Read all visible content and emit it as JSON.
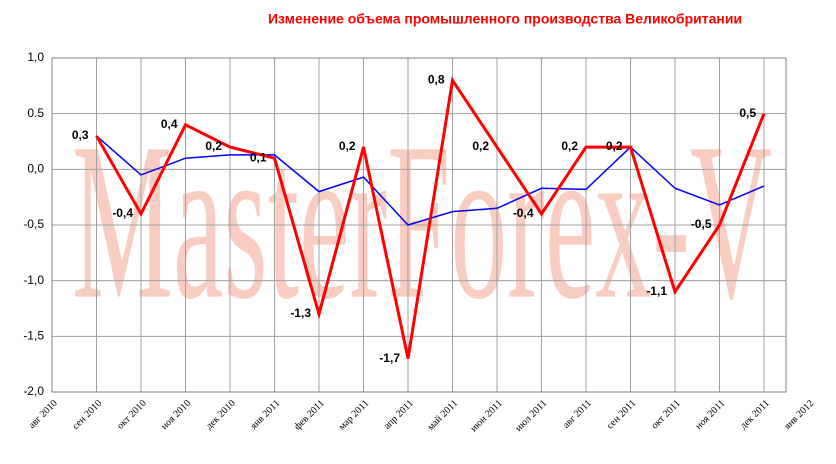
{
  "chart_data": {
    "type": "line",
    "title": "Изменение объема промышленного производства Великобритании",
    "watermark": "MasterForex-V",
    "categories": [
      "авг 2010",
      "сен 2010",
      "окт 2010",
      "ноя 2010",
      "дек 2010",
      "янв 2011",
      "фев 2011",
      "мар 2011",
      "апр 2011",
      "май 2011",
      "июн 2011",
      "июл 2011",
      "авг 2011",
      "сен 2011",
      "окт 2011",
      "ноя 2011",
      "дек 2011",
      "янв 2012"
    ],
    "series": [
      {
        "color": "#ff0000",
        "values": [
          null,
          0.3,
          -0.4,
          0.4,
          0.2,
          0.1,
          -1.3,
          0.2,
          -1.7,
          0.8,
          0.2,
          -0.4,
          0.2,
          0.2,
          -1.1,
          -0.5,
          0.5,
          null
        ],
        "value_labels": [
          null,
          "0,3",
          "-0,4",
          "0,4",
          "0,2",
          "0,1",
          "-1,3",
          "0,2",
          "-1,7",
          "0,8",
          "0,2",
          "-0,4",
          "0,2",
          "0,2",
          "-1,1",
          "-0,5",
          "0,5",
          null
        ]
      },
      {
        "color": "#0000ff",
        "values": [
          null,
          0.3,
          -0.05,
          0.1,
          0.13,
          0.13,
          -0.2,
          -0.07,
          -0.5,
          -0.38,
          -0.35,
          -0.17,
          -0.18,
          0.2,
          -0.17,
          -0.32,
          -0.15,
          null
        ]
      }
    ],
    "ylim": [
      -2,
      1
    ],
    "yticks": [
      {
        "value": 1,
        "label": "1,0"
      },
      {
        "value": 0.5,
        "label": "0.5"
      },
      {
        "value": 0,
        "label": "0,0"
      },
      {
        "value": -0.5,
        "label": "-0,5"
      },
      {
        "value": -1,
        "label": "-1,0"
      },
      {
        "value": -1.5,
        "label": "-1,5"
      },
      {
        "value": -2,
        "label": "-2,0"
      }
    ],
    "grid": true
  }
}
